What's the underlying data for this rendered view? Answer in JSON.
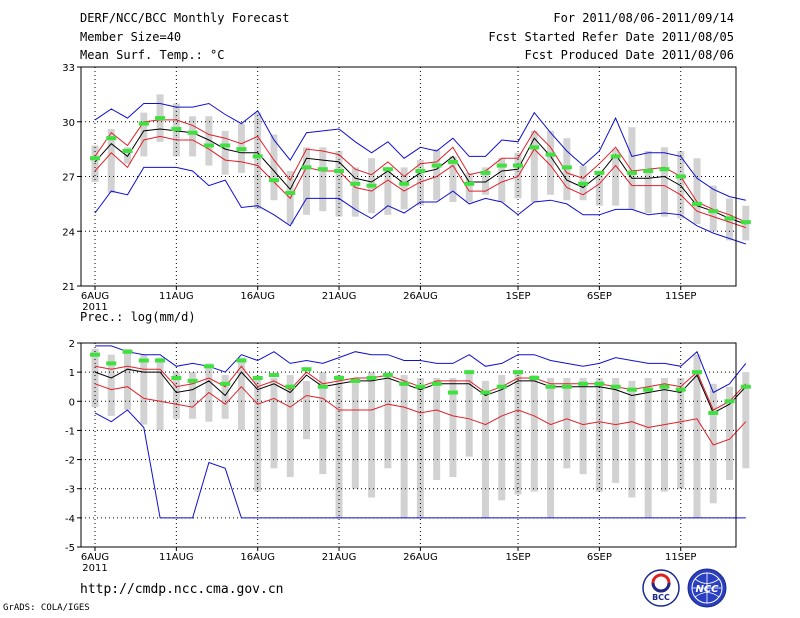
{
  "header": {
    "title": "DERF/NCC/BCC Monthly Forecast",
    "member": "Member Size=40",
    "variable": "Mean Surf. Temp.: °C",
    "period": "For 2011/08/06-2011/09/14",
    "started": "Fcst Started Refer Date 2011/08/05",
    "produced": "Fcst Produced Date 2011/08/06"
  },
  "footer": {
    "url": "http://cmdp.ncc.cma.gov.cn",
    "credit": "GrADS: COLA/IGES",
    "logo1_text": "BCC",
    "logo2_text": "NCC"
  },
  "colors": {
    "mean": "#000000",
    "spread": "#e0202a",
    "extreme": "#1010d0",
    "observed": "#40e040",
    "box": "#d2d2d2"
  },
  "chart_data": [
    {
      "type": "line",
      "title": "Mean Surf. Temp.: °C",
      "ylim": [
        21,
        33
      ],
      "yticks": [
        "21",
        "24",
        "27",
        "30",
        "33"
      ],
      "x_tick_days": [
        0,
        5,
        10,
        15,
        20,
        26,
        31,
        36
      ],
      "x_tick_labels": [
        "6AUG",
        "11AUG",
        "16AUG",
        "21AUG",
        "26AUG",
        "1SEP",
        "6SEP",
        "11SEP"
      ],
      "year_label": "2011",
      "grid": true,
      "box_upper": [
        28.7,
        29.6,
        28.6,
        30.5,
        31.5,
        31.0,
        30.3,
        30.3,
        29.5,
        29.9,
        30.5,
        29.3,
        27.3,
        28.6,
        28.6,
        28.4,
        27.5,
        28.0,
        27.3,
        27.5,
        27.9,
        28.5,
        28.1,
        27.2,
        27.5,
        28.0,
        28.3,
        29.5,
        29.5,
        29.1,
        27.6,
        27.3,
        28.5,
        29.7,
        28.4,
        28.6,
        28.4,
        28.0,
        26.5,
        25.8,
        25.4
      ],
      "box_lower": [
        26.7,
        26.1,
        27.7,
        28.1,
        28.9,
        28.1,
        28.1,
        27.6,
        27.1,
        27.2,
        25.2,
        25.7,
        24.4,
        24.9,
        25.1,
        24.8,
        24.8,
        25.0,
        24.9,
        25.2,
        25.4,
        25.7,
        25.6,
        25.6,
        26.0,
        25.6,
        25.8,
        25.6,
        26.0,
        25.7,
        25.7,
        25.4,
        25.4,
        25.2,
        25.0,
        24.8,
        24.7,
        24.4,
        24.0,
        23.5,
        23.5
      ],
      "series": [
        {
          "name": "ensemble-max",
          "color": "#1010d0",
          "values": [
            30.1,
            30.7,
            30.2,
            31.0,
            31.0,
            30.8,
            30.8,
            31.0,
            30.4,
            29.9,
            30.6,
            29.0,
            27.9,
            29.4,
            29.5,
            29.6,
            28.9,
            28.3,
            28.9,
            28.0,
            28.6,
            28.4,
            29.1,
            28.1,
            28.1,
            29.0,
            28.9,
            30.5,
            29.4,
            28.4,
            27.6,
            28.4,
            30.2,
            28.1,
            28.3,
            28.3,
            28.1,
            26.9,
            26.3,
            25.9,
            25.7
          ]
        },
        {
          "name": "upper-spread",
          "color": "#e0202a",
          "values": [
            28.1,
            29.4,
            28.7,
            30.0,
            30.1,
            30.1,
            29.8,
            29.3,
            29.1,
            28.8,
            29.2,
            27.9,
            26.8,
            28.5,
            28.4,
            28.2,
            27.4,
            27.1,
            27.8,
            27.0,
            27.7,
            27.8,
            28.6,
            27.1,
            27.3,
            28.0,
            28.0,
            29.5,
            28.6,
            27.2,
            26.9,
            27.7,
            28.6,
            27.3,
            27.4,
            27.5,
            27.0,
            25.6,
            25.2,
            24.9,
            24.5
          ]
        },
        {
          "name": "ensemble-mean",
          "color": "#000000",
          "values": [
            27.8,
            28.8,
            28.1,
            29.5,
            29.6,
            29.5,
            29.4,
            29.0,
            28.5,
            28.3,
            28.3,
            27.3,
            26.3,
            28.0,
            27.9,
            27.8,
            26.9,
            26.7,
            27.3,
            26.6,
            27.2,
            27.4,
            28.1,
            26.7,
            26.7,
            27.3,
            27.4,
            29.1,
            28.1,
            26.8,
            26.4,
            27.1,
            28.2,
            26.9,
            26.9,
            27.0,
            26.5,
            25.4,
            25.1,
            24.7,
            24.4
          ]
        },
        {
          "name": "lower-spread",
          "color": "#e0202a",
          "values": [
            27.3,
            28.3,
            27.5,
            29.0,
            29.2,
            29.0,
            29.0,
            28.5,
            27.9,
            27.8,
            27.6,
            26.7,
            25.8,
            27.5,
            27.3,
            27.3,
            26.4,
            26.2,
            26.8,
            26.2,
            26.7,
            27.0,
            27.6,
            26.2,
            26.2,
            26.7,
            27.0,
            28.5,
            27.6,
            26.4,
            26.0,
            26.6,
            27.6,
            26.5,
            26.5,
            26.5,
            26.0,
            25.1,
            24.8,
            24.5,
            24.2
          ]
        },
        {
          "name": "ensemble-min",
          "color": "#1010d0",
          "values": [
            25.0,
            26.2,
            26.0,
            27.5,
            27.5,
            27.5,
            27.3,
            26.5,
            26.8,
            25.3,
            25.4,
            24.9,
            24.3,
            25.8,
            25.8,
            25.8,
            25.2,
            24.7,
            25.4,
            25.0,
            25.6,
            25.6,
            26.2,
            25.5,
            25.8,
            25.6,
            24.9,
            25.6,
            25.7,
            25.5,
            24.9,
            24.9,
            25.2,
            25.2,
            24.9,
            25.0,
            24.9,
            24.3,
            23.9,
            23.6,
            23.3
          ]
        },
        {
          "name": "observed",
          "color": "#40e040",
          "values": [
            28.0,
            29.1,
            28.4,
            29.9,
            30.2,
            29.6,
            29.4,
            28.7,
            28.7,
            28.5,
            28.1,
            26.8,
            26.1,
            27.5,
            27.4,
            27.3,
            26.6,
            26.5,
            27.4,
            26.6,
            27.3,
            27.6,
            27.8,
            26.6,
            27.2,
            27.6,
            27.6,
            28.6,
            28.2,
            27.5,
            26.6,
            27.2,
            28.1,
            27.2,
            27.3,
            27.4,
            27.0,
            25.5,
            25.1,
            24.7,
            24.5
          ]
        }
      ]
    },
    {
      "type": "line",
      "title": "Prec.: log(mm/d)",
      "ylim": [
        -5,
        2
      ],
      "yticks": [
        "-5",
        "-4",
        "-3",
        "-2",
        "-1",
        "0",
        "1",
        "2"
      ],
      "x_tick_days": [
        0,
        5,
        10,
        15,
        20,
        26,
        31,
        36
      ],
      "x_tick_labels": [
        "6AUG",
        "11AUG",
        "16AUG",
        "21AUG",
        "26AUG",
        "1SEP",
        "6SEP",
        "11SEP"
      ],
      "year_label": "2011",
      "grid": true,
      "box_upper": [
        1.8,
        1.6,
        1.8,
        1.6,
        1.5,
        1.0,
        1.0,
        1.3,
        0.9,
        1.5,
        0.8,
        0.8,
        0.9,
        0.7,
        1.0,
        0.9,
        0.8,
        1.0,
        1.0,
        0.9,
        0.8,
        0.8,
        0.8,
        1.0,
        0.7,
        0.9,
        1.0,
        0.9,
        0.8,
        0.8,
        0.8,
        0.8,
        0.8,
        0.7,
        0.8,
        0.8,
        0.8,
        1.6,
        0.6,
        0.5,
        1.0
      ],
      "box_lower": [
        -0.2,
        -0.5,
        -0.3,
        -0.8,
        -1.0,
        -0.6,
        -0.6,
        -0.7,
        -0.6,
        -1.0,
        -3.1,
        -2.3,
        -2.6,
        -1.3,
        -2.5,
        -4.0,
        -3.0,
        -3.3,
        -2.3,
        -4.0,
        -4.0,
        -2.7,
        -2.6,
        -1.9,
        -4.0,
        -3.4,
        -3.2,
        -3.1,
        -4.0,
        -2.3,
        -2.5,
        -3.1,
        -2.8,
        -3.3,
        -4.0,
        -3.1,
        -3.0,
        -4.0,
        -3.5,
        -2.7,
        -2.3
      ],
      "series": [
        {
          "name": "ensemble-max",
          "color": "#1010d0",
          "values": [
            1.9,
            1.9,
            1.7,
            1.6,
            1.6,
            1.2,
            1.3,
            1.2,
            1.0,
            1.6,
            1.4,
            1.7,
            1.3,
            1.4,
            1.3,
            1.5,
            1.7,
            1.6,
            1.6,
            1.4,
            1.4,
            1.3,
            1.3,
            1.6,
            1.2,
            1.3,
            1.6,
            1.6,
            1.4,
            1.3,
            1.2,
            1.3,
            1.5,
            1.4,
            1.3,
            1.3,
            1.2,
            1.7,
            0.3,
            0.6,
            1.3
          ]
        },
        {
          "name": "upper-spread",
          "color": "#e0202a",
          "values": [
            1.2,
            1.1,
            1.2,
            1.1,
            1.1,
            0.5,
            0.6,
            0.8,
            0.5,
            1.2,
            0.5,
            0.7,
            0.4,
            1.0,
            0.6,
            0.7,
            0.8,
            0.8,
            0.9,
            0.7,
            0.5,
            0.7,
            0.7,
            0.7,
            0.3,
            0.5,
            0.8,
            0.8,
            0.6,
            0.6,
            0.6,
            0.6,
            0.5,
            0.4,
            0.5,
            0.6,
            0.5,
            1.0,
            -0.3,
            0.0,
            0.6
          ]
        },
        {
          "name": "ensemble-mean",
          "color": "#000000",
          "values": [
            1.0,
            0.8,
            1.1,
            1.0,
            1.0,
            0.3,
            0.4,
            0.7,
            0.2,
            1.0,
            0.4,
            0.6,
            0.3,
            0.9,
            0.5,
            0.6,
            0.7,
            0.7,
            0.8,
            0.6,
            0.4,
            0.6,
            0.6,
            0.6,
            0.2,
            0.4,
            0.7,
            0.7,
            0.5,
            0.5,
            0.5,
            0.5,
            0.4,
            0.2,
            0.3,
            0.4,
            0.3,
            0.9,
            -0.4,
            -0.1,
            0.5
          ]
        },
        {
          "name": "lower-spread",
          "color": "#e0202a",
          "values": [
            0.6,
            0.4,
            0.5,
            0.1,
            0.0,
            -0.1,
            -0.2,
            0.3,
            -0.1,
            0.5,
            -0.1,
            0.1,
            -0.2,
            0.2,
            0.1,
            -0.3,
            -0.3,
            -0.3,
            -0.1,
            -0.2,
            -0.4,
            -0.3,
            -0.5,
            -0.6,
            -0.8,
            -0.5,
            -0.3,
            -0.5,
            -0.8,
            -0.6,
            -0.8,
            -0.7,
            -0.8,
            -0.7,
            -0.9,
            -0.8,
            -0.7,
            -0.6,
            -1.5,
            -1.3,
            -0.7
          ]
        },
        {
          "name": "ensemble-min",
          "color": "#1010d0",
          "values": [
            -0.4,
            -0.7,
            -0.3,
            -0.9,
            -4.0,
            -4.0,
            -4.0,
            -2.1,
            -2.3,
            -4.0,
            -4.0,
            -4.0,
            -4.0,
            -4.0,
            -4.0,
            -4.0,
            -4.0,
            -4.0,
            -4.0,
            -4.0,
            -4.0,
            -4.0,
            -4.0,
            -4.0,
            -4.0,
            -4.0,
            -4.0,
            -4.0,
            -4.0,
            -4.0,
            -4.0,
            -4.0,
            -4.0,
            -4.0,
            -4.0,
            -4.0,
            -4.0,
            -4.0,
            -4.0,
            -4.0,
            -4.0
          ]
        },
        {
          "name": "observed",
          "color": "#40e040",
          "values": [
            1.6,
            1.3,
            1.7,
            1.4,
            1.4,
            0.8,
            0.7,
            1.2,
            0.6,
            1.4,
            0.8,
            0.9,
            0.5,
            1.1,
            0.5,
            0.8,
            0.7,
            0.8,
            0.9,
            0.6,
            0.5,
            0.6,
            0.3,
            1.0,
            0.3,
            0.5,
            1.0,
            0.8,
            0.5,
            0.5,
            0.6,
            0.6,
            0.5,
            0.4,
            0.4,
            0.5,
            0.4,
            1.0,
            -0.4,
            0.0,
            0.5
          ]
        }
      ]
    }
  ]
}
